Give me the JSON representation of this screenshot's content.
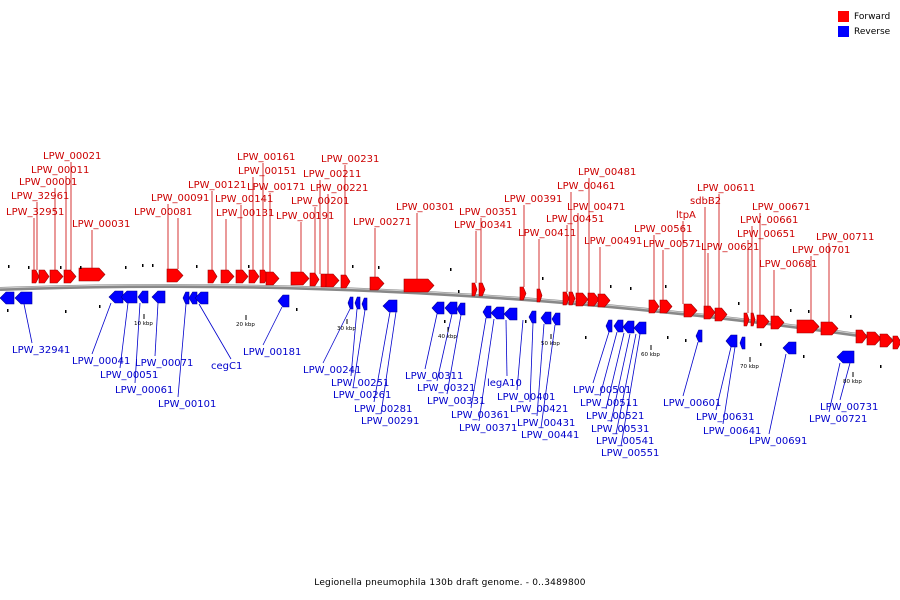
{
  "legend": {
    "forward_label": "Forward",
    "reverse_label": "Reverse",
    "forward_color": "#ff0000",
    "reverse_color": "#0000ff"
  },
  "caption": "Legionella pneumophila 130b draft genome. - 0..3489800",
  "scale_labels": [
    "10 kbp",
    "20 kbp",
    "30 kbp",
    "40 kbp",
    "50 kbp",
    "60 kbp",
    "70 kbp",
    "80 kbp"
  ],
  "forward_genes": [
    "LPW_32951",
    "LPW_32961",
    "LPW_00001",
    "LPW_00011",
    "LPW_00021",
    "LPW_00031",
    "LPW_00081",
    "LPW_00091",
    "LPW_00121",
    "LPW_00131",
    "LPW_00141",
    "LPW_00151",
    "LPW_00161",
    "LPW_00171",
    "LPW_00191",
    "LPW_00201",
    "LPW_00211",
    "LPW_00221",
    "LPW_00231",
    "LPW_00271",
    "LPW_00301",
    "LPW_00341",
    "LPW_00351",
    "LPW_00391",
    "LPW_00411",
    "LPW_00451",
    "LPW_00461",
    "LPW_00471",
    "LPW_00481",
    "LPW_00491",
    "LPW_00561",
    "LPW_00571",
    "ltpA",
    "sdbB2",
    "LPW_00611",
    "LPW_00621",
    "LPW_00651",
    "LPW_00661",
    "LPW_00671",
    "LPW_00681",
    "LPW_00701",
    "LPW_00711"
  ],
  "reverse_genes": [
    "LPW_32941",
    "LPW_00041",
    "LPW_00051",
    "LPW_00061",
    "LPW_00071",
    "LPW_00101",
    "cegC1",
    "LPW_00181",
    "LPW_00241",
    "LPW_00251",
    "LPW_00261",
    "LPW_00281",
    "LPW_00291",
    "LPW_00311",
    "LPW_00321",
    "LPW_00331",
    "LPW_00361",
    "LPW_00371",
    "legA10",
    "LPW_00401",
    "LPW_00421",
    "LPW_00431",
    "LPW_00441",
    "LPW_00501",
    "LPW_00511",
    "LPW_00521",
    "LPW_00531",
    "LPW_00541",
    "LPW_00551",
    "LPW_00601",
    "LPW_00631",
    "LPW_00641",
    "LPW_00691",
    "LPW_00721",
    "LPW_00731"
  ]
}
